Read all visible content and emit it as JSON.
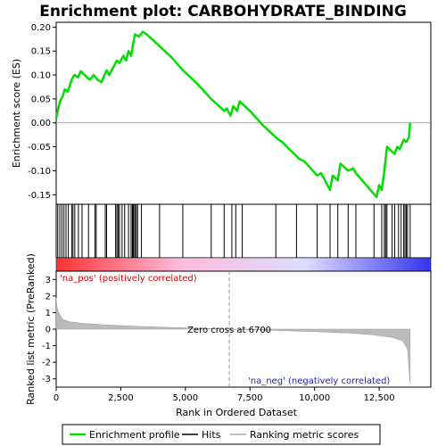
{
  "chart_data": {
    "type": "line",
    "title": "Enrichment plot: CARBOHYDRATE_BINDING",
    "xlabel": "Rank in Ordered Dataset",
    "xlim": [
      0,
      14500
    ],
    "x_ticks": [
      0,
      2500,
      5000,
      7500,
      10000,
      12500
    ],
    "x_tick_labels": [
      "0",
      "2,500",
      "5,000",
      "7,500",
      "10,000",
      "12,500"
    ],
    "enrichment": {
      "ylabel": "Enrichment score (ES)",
      "ylim": [
        -0.17,
        0.21
      ],
      "y_ticks": [
        -0.15,
        -0.1,
        -0.05,
        0.0,
        0.05,
        0.1,
        0.15,
        0.2
      ],
      "y_tick_labels": [
        "-0.15",
        "-0.10",
        "-0.05",
        "0.00",
        "0.05",
        "0.10",
        "0.15",
        "0.20"
      ],
      "series": [
        {
          "name": "Enrichment profile",
          "color": "#00dd00",
          "x": [
            0,
            80,
            150,
            250,
            330,
            450,
            600,
            700,
            850,
            950,
            1100,
            1300,
            1450,
            1600,
            1750,
            1950,
            2050,
            2200,
            2350,
            2450,
            2600,
            2700,
            2800,
            2900,
            2980,
            3050,
            3200,
            3350,
            3500,
            4000,
            4500,
            4900,
            5400,
            6000,
            6500,
            6600,
            6750,
            6850,
            7000,
            7100,
            7500,
            8000,
            8600,
            8750,
            9400,
            9600,
            10100,
            10250,
            10600,
            10700,
            10900,
            11000,
            11300,
            11500,
            11600,
            12400,
            12500,
            12600,
            12700,
            12800,
            12900,
            13100,
            13200,
            13300,
            13450,
            13550,
            13650,
            13700
          ],
          "y": [
            0.01,
            0.03,
            0.045,
            0.055,
            0.07,
            0.065,
            0.09,
            0.1,
            0.095,
            0.108,
            0.1,
            0.09,
            0.1,
            0.09,
            0.085,
            0.11,
            0.1,
            0.115,
            0.13,
            0.125,
            0.14,
            0.13,
            0.15,
            0.14,
            0.165,
            0.185,
            0.18,
            0.19,
            0.185,
            0.16,
            0.135,
            0.11,
            0.085,
            0.05,
            0.025,
            0.03,
            0.015,
            0.035,
            0.025,
            0.045,
            0.025,
            -0.005,
            -0.035,
            -0.04,
            -0.075,
            -0.08,
            -0.11,
            -0.105,
            -0.14,
            -0.11,
            -0.12,
            -0.085,
            -0.1,
            -0.095,
            -0.105,
            -0.155,
            -0.13,
            -0.14,
            -0.1,
            -0.05,
            -0.055,
            -0.065,
            -0.05,
            -0.055,
            -0.035,
            -0.04,
            -0.03,
            0.0
          ]
        }
      ]
    },
    "hits_positions": [
      60,
      140,
      220,
      300,
      380,
      470,
      600,
      650,
      720,
      860,
      1000,
      1250,
      1500,
      1550,
      1900,
      1950,
      2300,
      2350,
      2400,
      2450,
      2550,
      2650,
      2800,
      2900,
      2950,
      2980,
      3000,
      3050,
      3100,
      3150,
      3300,
      4000,
      4900,
      6000,
      6500,
      6800,
      6950,
      7200,
      8500,
      9300,
      10100,
      10600,
      10900,
      11300,
      11600,
      12300,
      12600,
      12700,
      12750,
      12800,
      13000,
      13100,
      13250,
      13350,
      13450,
      13500,
      13550,
      13600,
      13700
    ],
    "gradient_colors": [
      "#ff3333",
      "#ffbbdd",
      "#ddddff",
      "#3333ee"
    ],
    "ranked": {
      "ylabel": "Ranked list metric (PreRanked)",
      "ylim": [
        -3.5,
        3.5
      ],
      "y_ticks": [
        -3,
        -2,
        -1,
        0,
        1,
        2,
        3
      ],
      "y_tick_labels": [
        "-3",
        "-2",
        "-1",
        "0",
        "1",
        "2",
        "3"
      ],
      "x": [
        0,
        30,
        100,
        250,
        500,
        1000,
        2000,
        3000,
        4500,
        6700,
        8500,
        10000,
        11500,
        12300,
        13000,
        13400,
        13600,
        13700
      ],
      "values": [
        1.9,
        1.3,
        1.0,
        0.6,
        0.45,
        0.35,
        0.25,
        0.18,
        0.1,
        0.0,
        -0.08,
        -0.15,
        -0.25,
        -0.35,
        -0.5,
        -0.7,
        -1.2,
        -3.3
      ],
      "zero_cross_label": "Zero cross at 6700",
      "zero_cross_x": 6700,
      "pos_label": "'na_pos' (positively correlated)",
      "neg_label": "'na_neg' (negatively correlated)"
    },
    "legend": [
      {
        "label": "Enrichment profile",
        "color": "#00dd00"
      },
      {
        "label": "Hits",
        "color": "#000000"
      },
      {
        "label": "Ranking metric scores",
        "color": "#aaaaaa"
      }
    ]
  }
}
